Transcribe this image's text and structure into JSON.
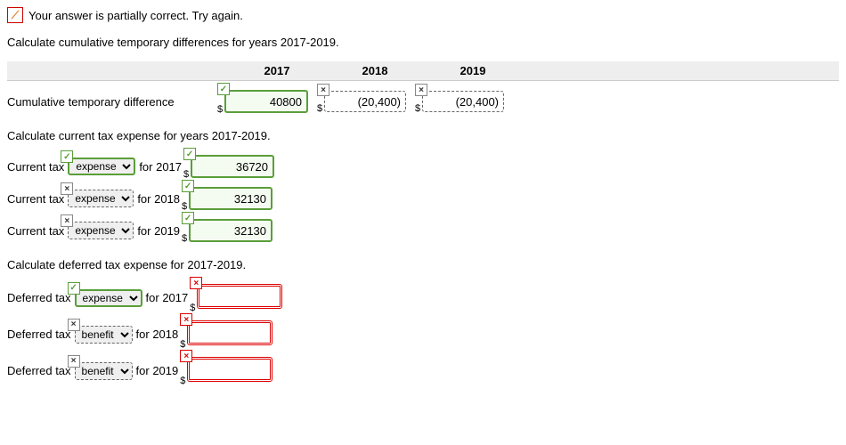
{
  "message": "Your answer is partially correct.  Try again.",
  "section1": {
    "title": "Calculate cumulative temporary differences for years 2017-2019.",
    "years": [
      "2017",
      "2018",
      "2019"
    ],
    "row_label": "Cumulative temporary difference",
    "cells": [
      {
        "status": "ok",
        "value": "40800"
      },
      {
        "status": "x",
        "value": "(20,400)"
      },
      {
        "status": "x",
        "value": "(20,400)"
      }
    ]
  },
  "section2": {
    "title": "Calculate current tax expense for years 2017-2019.",
    "rows": [
      {
        "prefix": "Current tax",
        "sel_status": "ok",
        "sel_val": "expense",
        "year": "for 2017",
        "num_status": "ok",
        "num_val": "36720"
      },
      {
        "prefix": "Current tax",
        "sel_status": "x",
        "sel_val": "expense",
        "year": "for 2018",
        "num_status": "ok",
        "num_val": "32130"
      },
      {
        "prefix": "Current tax",
        "sel_status": "x",
        "sel_val": "expense",
        "year": "for 2019",
        "num_status": "ok",
        "num_val": "32130"
      }
    ]
  },
  "section3": {
    "title": "Calculate deferred tax expense for 2017-2019.",
    "rows": [
      {
        "prefix": "Deferred tax",
        "sel_status": "ok",
        "sel_val": "expense",
        "year": "for 2017",
        "num_status": "blank",
        "num_val": ""
      },
      {
        "prefix": "Deferred tax",
        "sel_status": "x",
        "sel_val": "benefit",
        "year": "for 2018",
        "num_status": "blank",
        "num_val": ""
      },
      {
        "prefix": "Deferred tax",
        "sel_status": "x",
        "sel_val": "benefit",
        "year": "for 2019",
        "num_status": "blank",
        "num_val": ""
      }
    ]
  },
  "icons": {
    "check": "✓",
    "cross": "×",
    "partial": "⟋",
    "dollar": "$"
  },
  "colors": {
    "correct": "#5a9e3a",
    "wrong": "#d00",
    "dashed": "#666"
  }
}
